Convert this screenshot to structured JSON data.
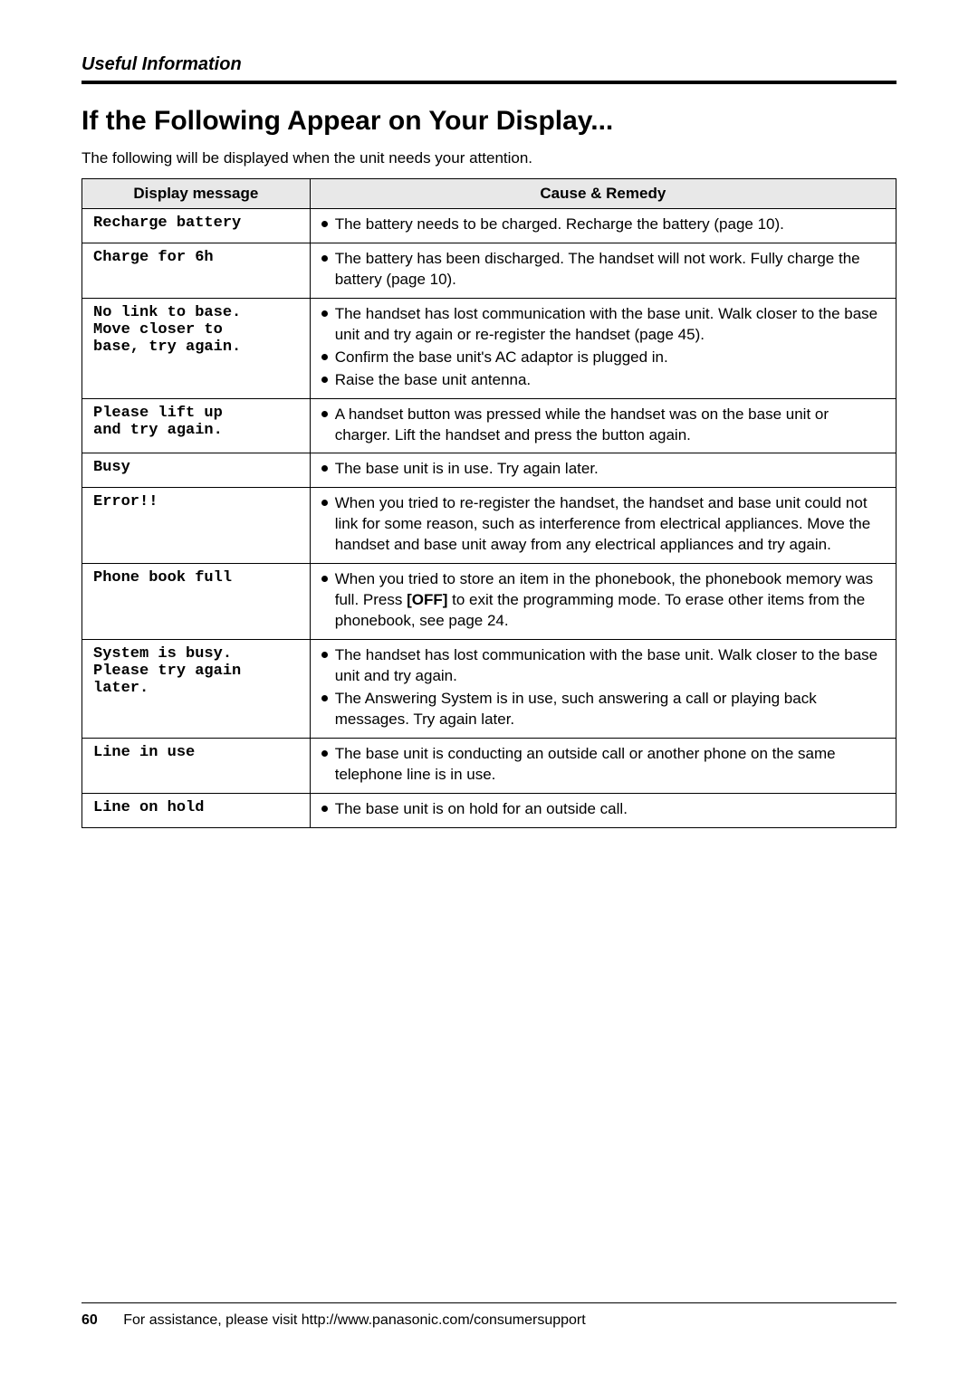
{
  "header": {
    "section": "Useful Information"
  },
  "title": "If the Following Appear on Your Display...",
  "intro": "The following will be displayed when the unit needs your attention.",
  "table": {
    "col_headers": [
      "Display message",
      "Cause & Remedy"
    ],
    "rows": [
      {
        "msg": "Recharge battery",
        "remedies": [
          "The battery needs to be charged. Recharge the battery (page 10)."
        ]
      },
      {
        "msg": " Charge for 6h",
        "remedies": [
          "The battery has been discharged. The handset will not work. Fully charge the battery (page 10)."
        ]
      },
      {
        "msg": "No link to base.\nMove closer to\nbase, try again.",
        "remedies": [
          "The handset has lost communication with the base unit. Walk closer to the base unit and try again or re-register the handset (page 45).",
          "Confirm the base unit's AC adaptor is plugged in.",
          "Raise the base unit antenna."
        ]
      },
      {
        "msg": "Please lift up\nand try again.",
        "remedies": [
          "A handset button was pressed while the handset was on the base unit or charger. Lift the handset and press the button again."
        ]
      },
      {
        "msg": "Busy",
        "remedies": [
          "The base unit is in use. Try again later."
        ]
      },
      {
        "msg": "   Error!!",
        "remedies": [
          "When you tried to re-register the handset, the handset and base unit could not link for some reason, such as interference from electrical appliances. Move the handset and base unit away from any electrical appliances and try again."
        ]
      },
      {
        "msg": "Phone book full",
        "remedies_html": [
          "When you tried to store an item in the phonebook, the phonebook memory was full. Press <b>[OFF]</b> to exit the programming mode. To erase other items from the phonebook, see page 24."
        ]
      },
      {
        "msg": "System is busy.\nPlease try again\nlater.",
        "remedies": [
          "The handset has lost communication with the base unit. Walk closer to the base unit and try again.",
          "The Answering System is in use, such answering a call or playing back messages. Try again later."
        ]
      },
      {
        "msg": "  Line in use",
        "remedies": [
          "The base unit is conducting an outside call or another phone on the same telephone line is in use."
        ]
      },
      {
        "msg": " Line on hold",
        "remedies": [
          "The base unit is on hold for an outside call."
        ]
      }
    ]
  },
  "footer": {
    "page": "60",
    "text": "For assistance, please visit http://www.panasonic.com/consumersupport"
  }
}
